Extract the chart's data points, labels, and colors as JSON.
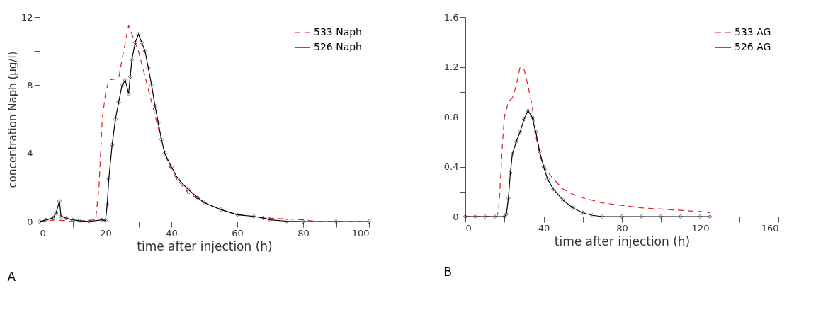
{
  "chart_data": [
    {
      "type": "line",
      "xlabel": "time after injection (h)",
      "ylabel": "concentration Naph (µg/l)",
      "annotations": [
        "A"
      ],
      "xlim": [
        0,
        100
      ],
      "xticks": [
        0,
        {
          "value": 10,
          "label": null
        },
        20,
        {
          "value": 30,
          "label": null
        },
        40,
        {
          "value": 50,
          "label": null
        },
        60,
        {
          "value": 70,
          "label": null
        },
        80,
        {
          "value": 90,
          "label": null
        },
        100
      ],
      "ylim": [
        0,
        12
      ],
      "yticks": [
        0,
        {
          "value": 2,
          "label": null
        },
        4,
        {
          "value": 6,
          "label": null
        },
        8,
        {
          "value": 10,
          "label": null
        },
        12
      ],
      "grid": false,
      "legend": "top right",
      "series": [
        {
          "name": "533 Naph",
          "color": "#e31a1c",
          "line_style": "dashed",
          "marker": "none",
          "x": [
            0,
            5,
            10,
            17,
            18,
            19,
            20,
            21,
            24,
            25,
            27,
            28,
            30,
            32,
            34,
            36,
            38,
            40,
            42,
            45,
            50,
            55,
            60,
            65,
            70,
            75,
            80,
            82,
            85,
            100
          ],
          "values": [
            0,
            0.1,
            0,
            0.1,
            2,
            6,
            7.5,
            8.3,
            8.4,
            9.5,
            11.5,
            11,
            10,
            8.5,
            7,
            5.5,
            4,
            3,
            2.4,
            1.7,
            1.1,
            0.7,
            0.4,
            0.3,
            0.2,
            0.15,
            0.1,
            0.05,
            0,
            0
          ]
        },
        {
          "name": "526 Naph",
          "color": "#000000",
          "line_style": "solid",
          "marker": "diamond",
          "x": [
            0,
            2,
            4,
            5,
            6,
            6.5,
            8,
            10,
            12,
            15,
            19,
            20,
            20.5,
            21,
            22,
            23,
            24,
            25,
            26,
            27,
            27.5,
            28,
            29,
            30,
            31,
            32,
            33,
            34,
            35,
            36,
            37,
            38,
            40,
            42,
            45,
            48,
            50,
            55,
            60,
            65,
            68,
            70,
            75,
            80,
            90,
            100
          ],
          "values": [
            0,
            0.1,
            0.2,
            0.5,
            1.2,
            0.3,
            0.2,
            0.1,
            0.05,
            0,
            0.1,
            0.05,
            1,
            2.5,
            4.5,
            6,
            7,
            8,
            8.3,
            7.5,
            8.5,
            9.5,
            10.5,
            11,
            10.5,
            10,
            9,
            8,
            6.8,
            5.8,
            4.8,
            4,
            3.2,
            2.5,
            1.9,
            1.4,
            1.1,
            0.7,
            0.4,
            0.3,
            0.2,
            0.1,
            0.02,
            0,
            0,
            0
          ]
        }
      ]
    },
    {
      "type": "line",
      "xlabel": "time after injection (h)",
      "annotations": [
        "B"
      ],
      "xlim": [
        0,
        160
      ],
      "xticks": [
        0,
        {
          "value": 20,
          "label": null
        },
        40,
        {
          "value": 60,
          "label": null
        },
        80,
        {
          "value": 100,
          "label": null
        },
        120,
        {
          "value": 140,
          "label": null
        },
        160
      ],
      "ylim": [
        0,
        1.6
      ],
      "yticks": [
        0,
        {
          "value": 0.2,
          "label": null
        },
        0.4,
        {
          "value": 0.6,
          "label": null
        },
        0.8,
        {
          "value": 1.0,
          "label": null
        },
        1.2,
        {
          "value": 1.4,
          "label": null
        },
        1.6
      ],
      "grid": false,
      "legend": "top right",
      "series": [
        {
          "name": "533 AG",
          "color": "#e31a1c",
          "line_style": "dashed",
          "marker": "none",
          "x": [
            0,
            16,
            17,
            18,
            19,
            20,
            22,
            24,
            26,
            28,
            30,
            32,
            34,
            36,
            38,
            40,
            45,
            50,
            55,
            60,
            70,
            80,
            90,
            100,
            110,
            120,
            125
          ],
          "values": [
            0,
            0,
            0.05,
            0.3,
            0.6,
            0.8,
            0.92,
            0.95,
            1.05,
            1.2,
            1.18,
            1.05,
            0.9,
            0.65,
            0.5,
            0.4,
            0.3,
            0.22,
            0.18,
            0.15,
            0.11,
            0.09,
            0.07,
            0.06,
            0.05,
            0.04,
            0.03
          ]
        },
        {
          "name": "526 AG",
          "color": "#000000",
          "line_style": "solid",
          "marker": "diamond",
          "x": [
            0,
            5,
            10,
            15,
            20,
            21,
            22,
            23,
            24,
            26,
            28,
            30,
            32,
            34,
            36,
            38,
            40,
            42,
            45,
            50,
            55,
            60,
            65,
            70,
            80,
            90,
            100,
            110,
            120,
            125
          ],
          "values": [
            0,
            0,
            0,
            0,
            0,
            0.02,
            0.15,
            0.35,
            0.5,
            0.6,
            0.68,
            0.78,
            0.85,
            0.8,
            0.68,
            0.52,
            0.4,
            0.3,
            0.22,
            0.13,
            0.07,
            0.03,
            0.01,
            0,
            0,
            0,
            0,
            0,
            0,
            0
          ]
        }
      ]
    }
  ]
}
